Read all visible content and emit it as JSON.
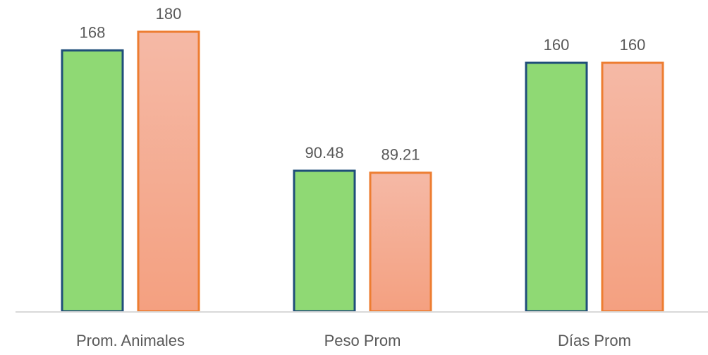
{
  "chart_data": {
    "type": "bar",
    "title": "",
    "xlabel": "",
    "ylabel": "",
    "categories": [
      "Prom. Animales",
      "Peso Prom",
      "Días Prom"
    ],
    "series": [
      {
        "values": [
          168,
          90.48,
          160
        ],
        "labels": [
          "168",
          "90.48",
          "160"
        ],
        "color": "#8fd974",
        "border_color": "#1f4e79"
      },
      {
        "values": [
          180,
          89.21,
          160
        ],
        "labels": [
          "180",
          "89.21",
          "160"
        ],
        "color_top": "#f5b9a6",
        "color_bottom": "#f4a080",
        "border_color": "#ed7d31"
      }
    ],
    "ylim": [
      0,
      200
    ],
    "grid": false,
    "legend": "none",
    "axis_color": "#d9d9d9",
    "label_color": "#595959"
  }
}
